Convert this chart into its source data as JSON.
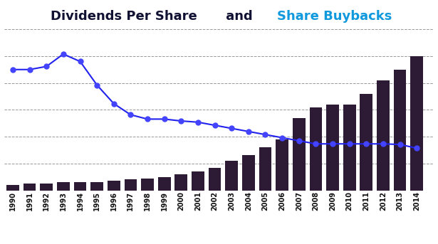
{
  "years": [
    1990,
    1991,
    1992,
    1993,
    1994,
    1995,
    1996,
    1997,
    1998,
    1999,
    2000,
    2001,
    2002,
    2003,
    2004,
    2005,
    2006,
    2007,
    2008,
    2009,
    2010,
    2011,
    2012,
    2013,
    2014
  ],
  "buybacks": [
    1,
    1.2,
    1.2,
    1.5,
    1.5,
    1.5,
    1.8,
    2.0,
    2.2,
    2.5,
    3.0,
    3.5,
    4.2,
    5.5,
    6.5,
    8.0,
    9.5,
    13.5,
    15.5,
    16.0,
    16.0,
    18.0,
    20.5,
    22.5,
    25.0
  ],
  "dividends": [
    1.95,
    1.95,
    2.0,
    2.2,
    2.08,
    1.7,
    1.4,
    1.22,
    1.15,
    1.15,
    1.12,
    1.1,
    1.05,
    1.0,
    0.95,
    0.9,
    0.85,
    0.8,
    0.75,
    0.75,
    0.75,
    0.75,
    0.75,
    0.74,
    0.68
  ],
  "bar_color": "#2d1b35",
  "line_color": "#2222ee",
  "marker_color": "#4444ff",
  "background_color": "#ffffff",
  "grid_color": "#999999",
  "title_dividends": "Dividends Per Share",
  "title_and": " and ",
  "title_buybacks": "Share Buybacks",
  "title_dividends_color": "#111133",
  "title_and_color": "#111133",
  "title_buybacks_color": "#1199dd",
  "title_fontsize": 13,
  "bar_ylim": [
    0,
    30
  ],
  "line_ylim": [
    0,
    2.6
  ]
}
